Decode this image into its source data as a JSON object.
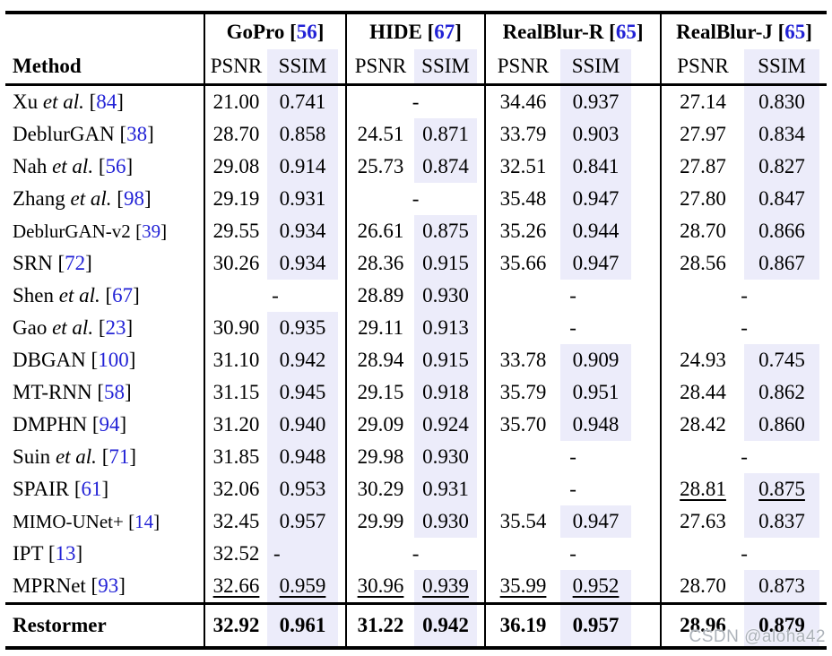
{
  "colors": {
    "ssim_highlight": "#ECECFA",
    "citation_blue": "#2222D6",
    "watermark_gray": "#ACB2B9"
  },
  "watermark": "CSDN @aloha42",
  "table": {
    "method_header": "Method",
    "metric_headers": {
      "psnr": "PSNR",
      "ssim": "SSIM"
    },
    "datasets": [
      {
        "name": "GoPro",
        "cite": "56"
      },
      {
        "name": "HIDE",
        "cite": "67"
      },
      {
        "name": "RealBlur-R",
        "cite": "65"
      },
      {
        "name": "RealBlur-J",
        "cite": "65"
      }
    ],
    "rows": [
      {
        "method": "Xu",
        "etal": true,
        "cite": "84",
        "cells": [
          {
            "psnr": "21.00",
            "ssim": "0.741"
          },
          {
            "dash": "-"
          },
          {
            "psnr": "34.46",
            "ssim": "0.937"
          },
          {
            "psnr": "27.14",
            "ssim": "0.830"
          }
        ]
      },
      {
        "method": "DeblurGAN",
        "etal": false,
        "cite": "38",
        "cells": [
          {
            "psnr": "28.70",
            "ssim": "0.858"
          },
          {
            "psnr": "24.51",
            "ssim": "0.871"
          },
          {
            "psnr": "33.79",
            "ssim": "0.903"
          },
          {
            "psnr": "27.97",
            "ssim": "0.834"
          }
        ]
      },
      {
        "method": "Nah",
        "etal": true,
        "cite": "56",
        "cells": [
          {
            "psnr": "29.08",
            "ssim": "0.914"
          },
          {
            "psnr": "25.73",
            "ssim": "0.874"
          },
          {
            "psnr": "32.51",
            "ssim": "0.841"
          },
          {
            "psnr": "27.87",
            "ssim": "0.827"
          }
        ]
      },
      {
        "method": "Zhang",
        "etal": true,
        "cite": "98",
        "cells": [
          {
            "psnr": "29.19",
            "ssim": "0.931"
          },
          {
            "dash": "-"
          },
          {
            "psnr": "35.48",
            "ssim": "0.947"
          },
          {
            "psnr": "27.80",
            "ssim": "0.847"
          }
        ]
      },
      {
        "method": "DeblurGAN-v2",
        "etal": false,
        "cite": "39",
        "small": true,
        "cells": [
          {
            "psnr": "29.55",
            "ssim": "0.934"
          },
          {
            "psnr": "26.61",
            "ssim": "0.875"
          },
          {
            "psnr": "35.26",
            "ssim": "0.944"
          },
          {
            "psnr": "28.70",
            "ssim": "0.866"
          }
        ]
      },
      {
        "method": "SRN",
        "etal": false,
        "cite": "72",
        "cells": [
          {
            "psnr": "30.26",
            "ssim": "0.934"
          },
          {
            "psnr": "28.36",
            "ssim": "0.915"
          },
          {
            "psnr": "35.66",
            "ssim": "0.947"
          },
          {
            "psnr": "28.56",
            "ssim": "0.867"
          }
        ]
      },
      {
        "method": "Shen",
        "etal": true,
        "cite": "67",
        "cells": [
          {
            "dash": "-"
          },
          {
            "psnr": "28.89",
            "ssim": "0.930"
          },
          {
            "dash": "-"
          },
          {
            "dash": "-"
          }
        ]
      },
      {
        "method": "Gao",
        "etal": true,
        "cite": "23",
        "cells": [
          {
            "psnr": "30.90",
            "ssim": "0.935"
          },
          {
            "psnr": "29.11",
            "ssim": "0.913"
          },
          {
            "dash": "-"
          },
          {
            "dash": "-"
          }
        ]
      },
      {
        "method": "DBGAN",
        "etal": false,
        "cite": "100",
        "cells": [
          {
            "psnr": "31.10",
            "ssim": "0.942"
          },
          {
            "psnr": "28.94",
            "ssim": "0.915"
          },
          {
            "psnr": "33.78",
            "ssim": "0.909"
          },
          {
            "psnr": "24.93",
            "ssim": "0.745"
          }
        ]
      },
      {
        "method": "MT-RNN",
        "etal": false,
        "cite": "58",
        "cells": [
          {
            "psnr": "31.15",
            "ssim": "0.945"
          },
          {
            "psnr": "29.15",
            "ssim": "0.918"
          },
          {
            "psnr": "35.79",
            "ssim": "0.951"
          },
          {
            "psnr": "28.44",
            "ssim": "0.862"
          }
        ]
      },
      {
        "method": "DMPHN",
        "etal": false,
        "cite": "94",
        "cells": [
          {
            "psnr": "31.20",
            "ssim": "0.940"
          },
          {
            "psnr": "29.09",
            "ssim": "0.924"
          },
          {
            "psnr": "35.70",
            "ssim": "0.948"
          },
          {
            "psnr": "28.42",
            "ssim": "0.860"
          }
        ]
      },
      {
        "method": "Suin",
        "etal": true,
        "cite": "71",
        "cells": [
          {
            "psnr": "31.85",
            "ssim": "0.948"
          },
          {
            "psnr": "29.98",
            "ssim": "0.930"
          },
          {
            "dash": "-"
          },
          {
            "dash": "-"
          }
        ]
      },
      {
        "method": "SPAIR",
        "etal": false,
        "cite": "61",
        "cells": [
          {
            "psnr": "32.06",
            "ssim": "0.953"
          },
          {
            "psnr": "30.29",
            "ssim": "0.931"
          },
          {
            "dash": "-"
          },
          {
            "psnr": "28.81",
            "ssim": "0.875",
            "psnr_u": true,
            "ssim_u": true
          }
        ]
      },
      {
        "method": "MIMO-UNet+",
        "etal": false,
        "cite": "14",
        "small": true,
        "cells": [
          {
            "psnr": "32.45",
            "ssim": "0.957"
          },
          {
            "psnr": "29.99",
            "ssim": "0.930"
          },
          {
            "psnr": "35.54",
            "ssim": "0.947"
          },
          {
            "psnr": "27.63",
            "ssim": "0.837"
          }
        ]
      },
      {
        "method": "IPT",
        "etal": false,
        "cite": "13",
        "cells": [
          {
            "psnr": "32.52",
            "ssim": "-",
            "ssim_left": true
          },
          {
            "dash": "-"
          },
          {
            "dash": "-"
          },
          {
            "dash": "-"
          }
        ]
      },
      {
        "method": "MPRNet",
        "etal": false,
        "cite": "93",
        "cells": [
          {
            "psnr": "32.66",
            "ssim": "0.959",
            "psnr_u": true,
            "ssim_u": true
          },
          {
            "psnr": "30.96",
            "ssim": "0.939",
            "psnr_u": true,
            "ssim_u": true
          },
          {
            "psnr": "35.99",
            "ssim": "0.952",
            "psnr_u": true,
            "ssim_u": true
          },
          {
            "psnr": "28.70",
            "ssim": "0.873"
          }
        ]
      }
    ],
    "footer_row": {
      "method": "Restormer",
      "cells": [
        {
          "psnr": "32.92",
          "ssim": "0.961"
        },
        {
          "psnr": "31.22",
          "ssim": "0.942"
        },
        {
          "psnr": "36.19",
          "ssim": "0.957"
        },
        {
          "psnr": "28.96",
          "ssim": "0.879"
        }
      ]
    }
  }
}
